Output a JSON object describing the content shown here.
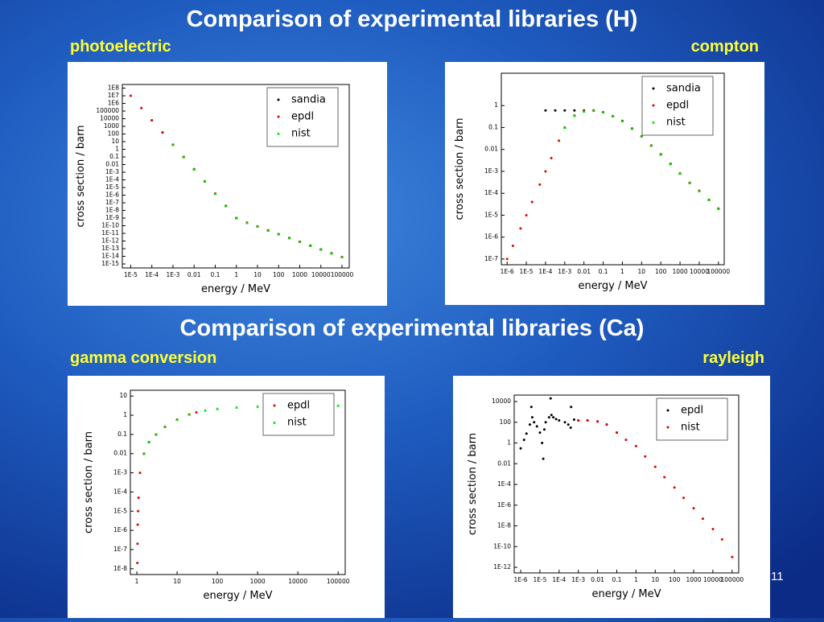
{
  "slide": {
    "headings": [
      "Comparison of experimental libraries (H)",
      "Comparison of experimental libraries (Ca)"
    ],
    "page_number": "11"
  },
  "chart_data": [
    {
      "type": "scatter",
      "title": "photoelectric",
      "x_label": "energy / MeV",
      "y_label": "cross section / barn",
      "log_x": true,
      "log_y": true,
      "legend": "upper right",
      "xlim": [
        4e-06,
        220000.0
      ],
      "ylim": [
        3e-16,
        300000000.0
      ],
      "xticks": [
        {
          "value": 1e-05,
          "label": "1E-5"
        },
        {
          "value": 0.0001,
          "label": "1E-4"
        },
        {
          "value": 0.001,
          "label": "1E-3"
        },
        0.01,
        0.1,
        1,
        10,
        100,
        1000,
        10000,
        100000
      ],
      "yticks": [
        {
          "value": 100000000.0,
          "label": "1E8"
        },
        {
          "value": 10000000.0,
          "label": "1E7"
        },
        {
          "value": 1000000.0,
          "label": "1E6"
        },
        100000,
        10000,
        1000,
        100,
        10,
        1,
        0.1,
        0.01,
        {
          "value": 0.001,
          "label": "1E-3"
        },
        {
          "value": 0.0001,
          "label": "1E-4"
        },
        {
          "value": 1e-05,
          "label": "1E-5"
        },
        {
          "value": 1e-06,
          "label": "1E-6"
        },
        {
          "value": 1e-07,
          "label": "1E-7"
        },
        {
          "value": 1e-08,
          "label": "1E-8"
        },
        {
          "value": 1e-09,
          "label": "1E-9"
        },
        {
          "value": 1e-10,
          "label": "1E-10"
        },
        {
          "value": 1e-11,
          "label": "1E-11"
        },
        {
          "value": 1e-12,
          "label": "1E-12"
        },
        {
          "value": 1e-13,
          "label": "1E-13"
        },
        {
          "value": 1e-14,
          "label": "1E-14"
        },
        {
          "value": 1e-15,
          "label": "1E-15"
        }
      ],
      "series": [
        {
          "name": "sandia",
          "color": "#000000",
          "marker": "dot",
          "x": [
            0.0001,
            0.00032,
            0.001,
            0.0032,
            0.01,
            0.032,
            0.1,
            0.32,
            1,
            3.2,
            10,
            32,
            100,
            320,
            1000,
            3200,
            10000,
            32000,
            100000
          ],
          "y": [
            6300,
            160,
            4,
            0.1,
            0.0025,
            6.3e-05,
            1.6e-06,
            4e-08,
            1e-09,
            2.5e-10,
            8e-11,
            2.5e-11,
            8e-12,
            2.5e-12,
            8e-13,
            2.5e-13,
            8e-14,
            2.5e-14,
            8e-15
          ]
        },
        {
          "name": "epdl",
          "color": "#e00000",
          "marker": "dot",
          "x": [
            1e-05,
            3.2e-05,
            0.0001,
            0.00032,
            0.001,
            0.0032,
            0.01,
            0.032,
            0.1,
            0.32,
            1,
            3.2,
            10,
            32,
            100,
            320,
            1000,
            3200,
            10000,
            32000,
            100000
          ],
          "y": [
            10000000.0,
            250000.0,
            6300,
            160,
            4,
            0.1,
            0.0025,
            6.3e-05,
            1.6e-06,
            4e-08,
            1e-09,
            2.5e-10,
            8e-11,
            2.5e-11,
            8e-12,
            2.5e-12,
            8e-13,
            2.5e-13,
            8e-14,
            2.5e-14,
            8e-15
          ]
        },
        {
          "name": "nist",
          "color": "#00dd00",
          "marker": "triangle",
          "x": [
            0.001,
            0.0032,
            0.01,
            0.032,
            0.1,
            0.32,
            1,
            3.2,
            10,
            32,
            100,
            320,
            1000,
            3200,
            10000,
            32000,
            100000
          ],
          "y": [
            4,
            0.1,
            0.0025,
            6.3e-05,
            1.6e-06,
            4e-08,
            1e-09,
            2.5e-10,
            8e-11,
            2.5e-11,
            8e-12,
            2.5e-12,
            8e-13,
            2.5e-13,
            8e-14,
            2.5e-14,
            8e-15
          ]
        }
      ]
    },
    {
      "type": "scatter",
      "title": "compton",
      "x_label": "energy / MeV",
      "y_label": "cross section / barn",
      "log_x": true,
      "log_y": true,
      "legend": "upper right",
      "xlim": [
        5e-07,
        200000.0
      ],
      "ylim": [
        5.5e-08,
        30
      ],
      "xticks": [
        {
          "value": 1e-06,
          "label": "1E-6"
        },
        {
          "value": 1e-05,
          "label": "1E-5"
        },
        {
          "value": 0.0001,
          "label": "1E-4"
        },
        {
          "value": 0.001,
          "label": "1E-3"
        },
        0.01,
        0.1,
        1,
        10,
        100,
        1000,
        10000,
        100000
      ],
      "yticks": [
        1,
        0.1,
        0.01,
        {
          "value": 0.001,
          "label": "1E-3"
        },
        {
          "value": 0.0001,
          "label": "1E-4"
        },
        {
          "value": 1e-05,
          "label": "1E-5"
        },
        {
          "value": 1e-06,
          "label": "1E-6"
        },
        {
          "value": 1e-07,
          "label": "1E-7"
        }
      ],
      "series": [
        {
          "name": "sandia",
          "color": "#000000",
          "marker": "dot",
          "x": [
            0.0001,
            0.00032,
            0.001,
            0.0032,
            0.01,
            0.032,
            0.1,
            0.32,
            1,
            3.2,
            10,
            32,
            100,
            320,
            1000,
            3200,
            10000,
            32000,
            100000
          ],
          "y": [
            0.6,
            0.6,
            0.6,
            0.6,
            0.6,
            0.6,
            0.5,
            0.33,
            0.2,
            0.09,
            0.04,
            0.015,
            0.006,
            0.0022,
            0.0008,
            0.0003,
            0.00013,
            5e-05,
            2e-05
          ]
        },
        {
          "name": "epdl",
          "color": "#e00000",
          "marker": "dot",
          "x": [
            1e-06,
            2e-06,
            5e-06,
            1e-05,
            2e-05,
            5e-05,
            0.0001,
            0.0002,
            0.0005,
            0.001,
            0.0032,
            0.01,
            0.032,
            0.1,
            0.32,
            1,
            3.2,
            10,
            32,
            100,
            320,
            1000,
            3200,
            10000,
            32000,
            100000
          ],
          "y": [
            1e-07,
            4e-07,
            2.5e-06,
            1e-05,
            4e-05,
            0.00025,
            0.001,
            0.004,
            0.025,
            0.1,
            0.35,
            0.55,
            0.6,
            0.5,
            0.33,
            0.2,
            0.09,
            0.04,
            0.015,
            0.006,
            0.0022,
            0.0008,
            0.0003,
            0.00013,
            5e-05,
            2e-05
          ]
        },
        {
          "name": "nist",
          "color": "#00dd00",
          "marker": "triangle",
          "x": [
            0.001,
            0.0032,
            0.01,
            0.032,
            0.1,
            0.32,
            1,
            3.2,
            10,
            32,
            100,
            320,
            1000,
            3200,
            10000,
            32000,
            100000
          ],
          "y": [
            0.1,
            0.35,
            0.55,
            0.6,
            0.5,
            0.33,
            0.2,
            0.09,
            0.04,
            0.015,
            0.006,
            0.0022,
            0.0008,
            0.0003,
            0.00013,
            5e-05,
            2e-05
          ]
        }
      ]
    },
    {
      "type": "scatter",
      "title": "gamma conversion",
      "x_label": "energy / MeV",
      "y_label": "cross section / barn",
      "log_x": true,
      "log_y": true,
      "legend": "upper right",
      "xlim": [
        0.69,
        150000.0
      ],
      "ylim": [
        5e-09,
        20
      ],
      "xticks": [
        1,
        10,
        100,
        1000,
        10000,
        100000
      ],
      "yticks": [
        10,
        1,
        0.1,
        0.01,
        {
          "value": 0.001,
          "label": "1E-3"
        },
        {
          "value": 0.0001,
          "label": "1E-4"
        },
        {
          "value": 1e-05,
          "label": "1E-5"
        },
        {
          "value": 1e-06,
          "label": "1E-6"
        },
        {
          "value": 1e-07,
          "label": "1E-7"
        },
        {
          "value": 1e-08,
          "label": "1E-8"
        }
      ],
      "series": [
        {
          "name": "epdl",
          "color": "#e00000",
          "marker": "dot",
          "x": [
            1.03,
            1.04,
            1.05,
            1.07,
            1.1,
            1.2,
            1.5,
            2,
            3,
            5,
            10,
            20,
            30
          ],
          "y": [
            2e-08,
            2e-07,
            2e-06,
            1e-05,
            5e-05,
            0.001,
            0.01,
            0.04,
            0.1,
            0.25,
            0.6,
            1.1,
            1.4
          ]
        },
        {
          "name": "nist",
          "color": "#00dd00",
          "marker": "triangle",
          "x": [
            1.5,
            2,
            3,
            5,
            10,
            20,
            50,
            100,
            300,
            1000,
            3000,
            10000,
            30000,
            100000
          ],
          "y": [
            0.01,
            0.04,
            0.1,
            0.25,
            0.6,
            1.1,
            1.8,
            2.2,
            2.6,
            2.9,
            3,
            3.1,
            3.15,
            3.2
          ]
        }
      ]
    },
    {
      "type": "scatter",
      "title": "rayleigh",
      "x_label": "energy / MeV",
      "y_label": "cross section / barn",
      "log_x": true,
      "log_y": true,
      "legend": "upper right",
      "xlim": [
        4.6e-07,
        220000.0
      ],
      "ylim": [
        2.9e-13,
        42000
      ],
      "xticks": [
        {
          "value": 1e-06,
          "label": "1E-6"
        },
        {
          "value": 1e-05,
          "label": "1E-5"
        },
        {
          "value": 0.0001,
          "label": "1E-4"
        },
        {
          "value": 0.001,
          "label": "1E-3"
        },
        0.01,
        0.1,
        1,
        10,
        100,
        1000,
        10000,
        100000
      ],
      "yticks": [
        10000,
        100,
        1,
        0.01,
        {
          "value": 0.0001,
          "label": "1E-4"
        },
        {
          "value": 1e-06,
          "label": "1E-6"
        },
        {
          "value": 1e-08,
          "label": "1E-8"
        },
        {
          "value": 1e-10,
          "label": "1E-10"
        },
        {
          "value": 1e-12,
          "label": "1E-12"
        }
      ],
      "series": [
        {
          "name": "epdl",
          "color": "#000000",
          "marker": "dot",
          "x": [
            1e-06,
            1.5e-06,
            2e-06,
            3e-06,
            3.6e-06,
            4e-06,
            5e-06,
            7e-06,
            1e-05,
            1.3e-05,
            1.5e-05,
            1.7e-05,
            2e-05,
            3e-05,
            3.6e-05,
            4e-05,
            5e-05,
            7e-05,
            0.0001,
            0.0002,
            0.0003,
            0.0004,
            0.00042,
            0.0006,
            0.001,
            0.003,
            0.01,
            0.03,
            0.1
          ],
          "y": [
            0.3,
            2,
            8,
            60,
            3000,
            300,
            100,
            40,
            10,
            1,
            0.03,
            20,
            100,
            300,
            20000,
            500,
            300,
            200,
            150,
            100,
            60,
            30,
            3000,
            180,
            150,
            150,
            120,
            60,
            10
          ]
        },
        {
          "name": "nist",
          "color": "#e00000",
          "marker": "dot",
          "x": [
            0.001,
            0.003,
            0.01,
            0.03,
            0.1,
            0.3,
            1,
            3,
            10,
            30,
            100,
            300,
            1000,
            3000,
            10000,
            30000,
            100000
          ],
          "y": [
            150,
            150,
            120,
            60,
            10,
            2,
            0.5,
            0.05,
            0.005,
            0.0005,
            5e-05,
            5e-06,
            5e-07,
            5e-08,
            5e-09,
            5e-10,
            1e-11
          ]
        }
      ]
    }
  ]
}
